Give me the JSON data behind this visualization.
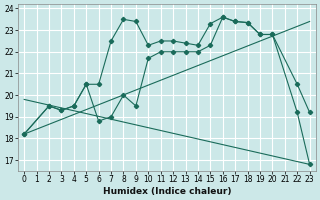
{
  "xlabel": "Humidex (Indice chaleur)",
  "background_color": "#cce8e8",
  "grid_color": "#ffffff",
  "line_color": "#1a6b5a",
  "xlim": [
    -0.5,
    23.5
  ],
  "ylim": [
    16.5,
    24.2
  ],
  "yticks": [
    17,
    18,
    19,
    20,
    21,
    22,
    23,
    24
  ],
  "xticks": [
    0,
    1,
    2,
    3,
    4,
    5,
    6,
    7,
    8,
    9,
    10,
    11,
    12,
    13,
    14,
    15,
    16,
    17,
    18,
    19,
    20,
    21,
    22,
    23
  ],
  "series": [
    {
      "x": [
        0,
        2,
        3,
        4,
        5,
        6,
        7,
        8,
        9,
        10,
        11,
        12,
        13,
        14,
        15,
        16,
        17,
        18,
        19,
        20,
        22,
        23
      ],
      "y": [
        18.2,
        19.5,
        19.3,
        19.5,
        20.5,
        20.5,
        22.5,
        23.5,
        23.4,
        22.3,
        22.5,
        22.5,
        22.4,
        22.3,
        23.3,
        23.6,
        23.4,
        23.35,
        22.8,
        22.8,
        20.5,
        19.2
      ],
      "markers": true
    },
    {
      "x": [
        0,
        2,
        3,
        4,
        5,
        6,
        7,
        8,
        9,
        10,
        11,
        12,
        13,
        14,
        15,
        16,
        17,
        18,
        19,
        20,
        22,
        23
      ],
      "y": [
        18.2,
        19.5,
        19.3,
        19.5,
        20.5,
        18.8,
        19.0,
        20.0,
        19.5,
        21.7,
        22.0,
        22.0,
        22.0,
        22.0,
        22.3,
        23.6,
        23.4,
        23.35,
        22.8,
        22.8,
        19.2,
        16.8
      ],
      "markers": true
    },
    {
      "x": [
        0,
        23
      ],
      "y": [
        18.2,
        23.4
      ],
      "markers": false
    },
    {
      "x": [
        0,
        23
      ],
      "y": [
        19.8,
        16.8
      ],
      "markers": false
    }
  ]
}
